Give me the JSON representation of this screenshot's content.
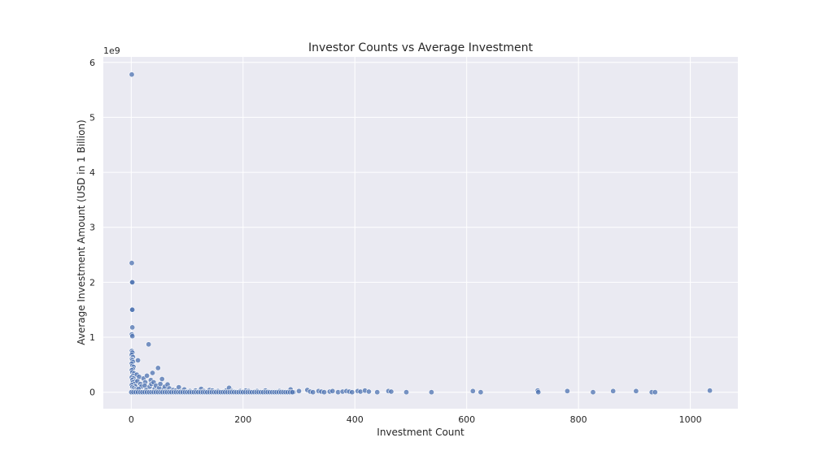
{
  "chart_data": {
    "type": "scatter",
    "title": "Investor Counts vs Average Investment",
    "xlabel": "Investment Count",
    "ylabel": "Average Investment Amount (USD in 1 Billion)",
    "y_offset_text": "1e9",
    "xlim": [
      -50,
      1085
    ],
    "ylim": [
      -300000000.0,
      6100000000.0
    ],
    "x_ticks": [
      0,
      200,
      400,
      600,
      800,
      1000
    ],
    "y_ticks": [
      0,
      1,
      2,
      3,
      4,
      5,
      6
    ],
    "grid": true,
    "colors": {
      "point": "#4c72b0",
      "background": "#eaeaf2"
    },
    "points": [
      [
        1,
        5780000000.0
      ],
      [
        1,
        2350000000.0
      ],
      [
        1,
        2000000000.0
      ],
      [
        2,
        2000000000.0
      ],
      [
        1,
        1500000000.0
      ],
      [
        2,
        1500000000.0
      ],
      [
        2,
        1180000000.0
      ],
      [
        1,
        1050000000.0
      ],
      [
        2,
        1020000000.0
      ],
      [
        1,
        750000000.0
      ],
      [
        2,
        720000000.0
      ],
      [
        1,
        680000000.0
      ],
      [
        3,
        640000000.0
      ],
      [
        1,
        600000000.0
      ],
      [
        2,
        580000000.0
      ],
      [
        3,
        550000000.0
      ],
      [
        1,
        520000000.0
      ],
      [
        2,
        480000000.0
      ],
      [
        4,
        460000000.0
      ],
      [
        3,
        420000000.0
      ],
      [
        1,
        400000000.0
      ],
      [
        2,
        360000000.0
      ],
      [
        5,
        340000000.0
      ],
      [
        3,
        300000000.0
      ],
      [
        1,
        270000000.0
      ],
      [
        4,
        250000000.0
      ],
      [
        2,
        220000000.0
      ],
      [
        6,
        200000000.0
      ],
      [
        3,
        180000000.0
      ],
      [
        5,
        150000000.0
      ],
      [
        1,
        130000000.0
      ],
      [
        7,
        110000000.0
      ],
      [
        2,
        90000000.0
      ],
      [
        4,
        70000000.0
      ],
      [
        8,
        50000000.0
      ],
      [
        3,
        30000000.0
      ],
      [
        1,
        10000000.0
      ],
      [
        6,
        0.0
      ],
      [
        2,
        0.0
      ],
      [
        9,
        20000000.0
      ],
      [
        12,
        580000000.0
      ],
      [
        10,
        320000000.0
      ],
      [
        14,
        280000000.0
      ],
      [
        11,
        200000000.0
      ],
      [
        16,
        150000000.0
      ],
      [
        18,
        100000000.0
      ],
      [
        13,
        60000000.0
      ],
      [
        20,
        0.0
      ],
      [
        22,
        250000000.0
      ],
      [
        25,
        180000000.0
      ],
      [
        28,
        300000000.0
      ],
      [
        24,
        120000000.0
      ],
      [
        27,
        40000000.0
      ],
      [
        30,
        0.0
      ],
      [
        31,
        870000000.0
      ],
      [
        35,
        220000000.0
      ],
      [
        38,
        350000000.0
      ],
      [
        33,
        100000000.0
      ],
      [
        36,
        150000000.0
      ],
      [
        40,
        180000000.0
      ],
      [
        42,
        60000000.0
      ],
      [
        45,
        20000000.0
      ],
      [
        48,
        440000000.0
      ],
      [
        44,
        120000000.0
      ],
      [
        50,
        80000000.0
      ],
      [
        52,
        150000000.0
      ],
      [
        55,
        240000000.0
      ],
      [
        58,
        50000000.0
      ],
      [
        60,
        100000000.0
      ],
      [
        62,
        20000000.0
      ],
      [
        65,
        140000000.0
      ],
      [
        68,
        70000000.0
      ],
      [
        70,
        10000000.0
      ],
      [
        75,
        40000000.0
      ],
      [
        80,
        30000000.0
      ],
      [
        85,
        90000000.0
      ],
      [
        90,
        20000000.0
      ],
      [
        95,
        50000000.0
      ],
      [
        100,
        10000000.0
      ],
      [
        105,
        20000000.0
      ],
      [
        110,
        0.0
      ],
      [
        115,
        30000000.0
      ],
      [
        120,
        10000000.0
      ],
      [
        125,
        60000000.0
      ],
      [
        130,
        20000000.0
      ],
      [
        135,
        0.0
      ],
      [
        140,
        40000000.0
      ],
      [
        145,
        30000000.0
      ],
      [
        150,
        10000000.0
      ],
      [
        155,
        20000000.0
      ],
      [
        160,
        0.0
      ],
      [
        165,
        10000000.0
      ],
      [
        170,
        30000000.0
      ],
      [
        175,
        80000000.0
      ],
      [
        180,
        20000000.0
      ],
      [
        185,
        10000000.0
      ],
      [
        190,
        0.0
      ],
      [
        195,
        20000000.0
      ],
      [
        200,
        10000000.0
      ],
      [
        205,
        30000000.0
      ],
      [
        210,
        20000000.0
      ],
      [
        215,
        0.0
      ],
      [
        220,
        10000000.0
      ],
      [
        225,
        20000000.0
      ],
      [
        235,
        0.0
      ],
      [
        240,
        30000000.0
      ],
      [
        245,
        10000000.0
      ],
      [
        255,
        0.0
      ],
      [
        265,
        20000000.0
      ],
      [
        270,
        10000000.0
      ],
      [
        278,
        0.0
      ],
      [
        285,
        50000000.0
      ],
      [
        290,
        0.0
      ],
      [
        300,
        20000000.0
      ],
      [
        315,
        40000000.0
      ],
      [
        320,
        10000000.0
      ],
      [
        325,
        0.0
      ],
      [
        335,
        20000000.0
      ],
      [
        340,
        10000000.0
      ],
      [
        345,
        0.0
      ],
      [
        355,
        10000000.0
      ],
      [
        360,
        20000000.0
      ],
      [
        370,
        0.0
      ],
      [
        378,
        10000000.0
      ],
      [
        385,
        20000000.0
      ],
      [
        390,
        10000000.0
      ],
      [
        395,
        0.0
      ],
      [
        405,
        20000000.0
      ],
      [
        410,
        10000000.0
      ],
      [
        418,
        30000000.0
      ],
      [
        425,
        10000000.0
      ],
      [
        440,
        0.0
      ],
      [
        460,
        20000000.0
      ],
      [
        465,
        10000000.0
      ],
      [
        492,
        0.0
      ],
      [
        537,
        0.0
      ],
      [
        611,
        20000000.0
      ],
      [
        625,
        0.0
      ],
      [
        727,
        30000000.0
      ],
      [
        728,
        0.0
      ],
      [
        780,
        20000000.0
      ],
      [
        826,
        0.0
      ],
      [
        862,
        20000000.0
      ],
      [
        903,
        20000000.0
      ],
      [
        931,
        0.0
      ],
      [
        937,
        0.0
      ],
      [
        1035,
        30000000.0
      ]
    ],
    "dense_zero_band": {
      "x_start": 0,
      "x_end": 290,
      "step": 4,
      "y": 0
    }
  }
}
